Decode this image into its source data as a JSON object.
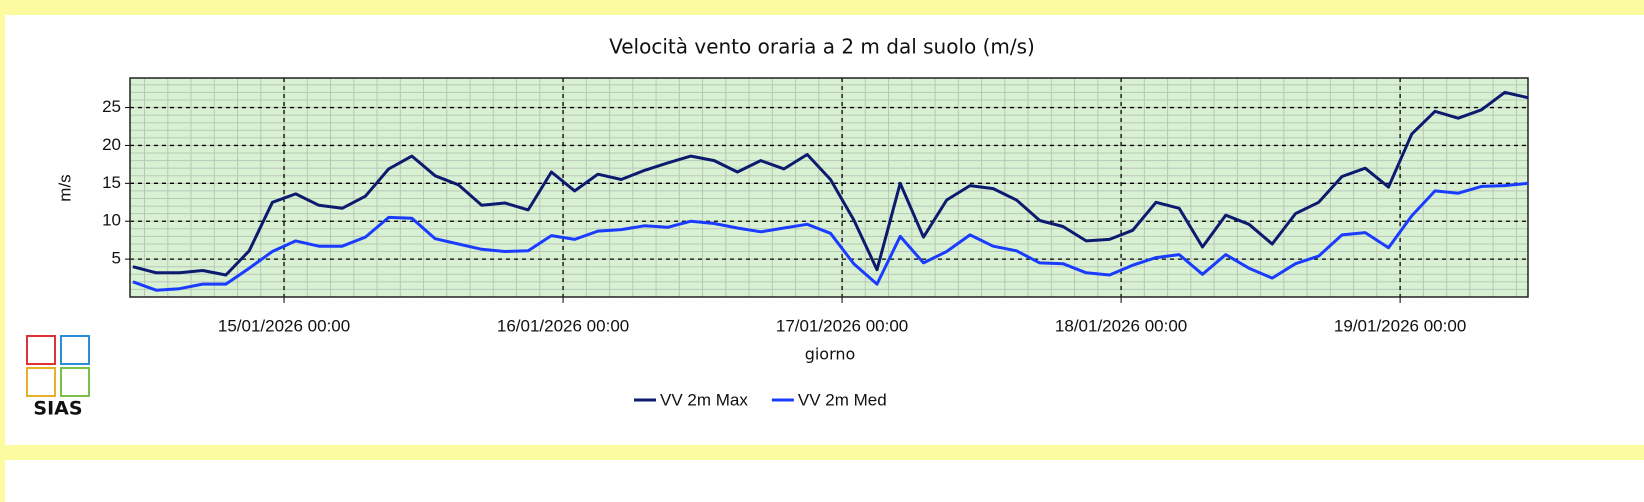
{
  "chart_data": {
    "type": "line",
    "title": "Velocità vento oraria a 2 m dal suolo (m/s)",
    "xlabel": "giorno",
    "ylabel": "m/s",
    "logo": "SIAS",
    "x": [
      "14/01/2026 11:00",
      "14/01/2026 13:00",
      "14/01/2026 15:00",
      "14/01/2026 17:00",
      "14/01/2026 19:00",
      "14/01/2026 21:00",
      "14/01/2026 23:00",
      "15/01/2026 01:00",
      "15/01/2026 03:00",
      "15/01/2026 05:00",
      "15/01/2026 07:00",
      "15/01/2026 09:00",
      "15/01/2026 11:00",
      "15/01/2026 13:00",
      "15/01/2026 15:00",
      "15/01/2026 17:00",
      "15/01/2026 19:00",
      "15/01/2026 21:00",
      "15/01/2026 23:00",
      "16/01/2026 01:00",
      "16/01/2026 03:00",
      "16/01/2026 05:00",
      "16/01/2026 07:00",
      "16/01/2026 09:00",
      "16/01/2026 11:00",
      "16/01/2026 13:00",
      "16/01/2026 15:00",
      "16/01/2026 17:00",
      "16/01/2026 19:00",
      "16/01/2026 21:00",
      "16/01/2026 23:00",
      "17/01/2026 01:00",
      "17/01/2026 03:00",
      "17/01/2026 05:00",
      "17/01/2026 07:00",
      "17/01/2026 09:00",
      "17/01/2026 11:00",
      "17/01/2026 13:00",
      "17/01/2026 15:00",
      "17/01/2026 17:00",
      "17/01/2026 19:00",
      "17/01/2026 21:00",
      "17/01/2026 23:00",
      "18/01/2026 01:00",
      "18/01/2026 03:00",
      "18/01/2026 05:00",
      "18/01/2026 07:00",
      "18/01/2026 09:00",
      "18/01/2026 11:00",
      "18/01/2026 13:00",
      "18/01/2026 15:00",
      "18/01/2026 17:00",
      "18/01/2026 19:00",
      "18/01/2026 21:00",
      "18/01/2026 23:00",
      "19/01/2026 01:00",
      "19/01/2026 03:00",
      "19/01/2026 05:00",
      "19/01/2026 07:00",
      "19/01/2026 09:00",
      "19/01/2026 11:00"
    ],
    "series": [
      {
        "name": "VV 2m Max",
        "color": "#0d1b6e",
        "values": [
          4.0,
          3.2,
          3.2,
          3.5,
          2.9,
          6.1,
          12.5,
          13.6,
          12.1,
          11.7,
          13.3,
          16.9,
          18.6,
          16.0,
          14.8,
          12.1,
          12.4,
          11.5,
          16.5,
          14.0,
          16.2,
          15.5,
          16.7,
          17.7,
          18.6,
          18.0,
          16.5,
          18.0,
          16.9,
          18.8,
          15.5,
          10.2,
          3.6,
          15.0,
          7.9,
          12.8,
          14.7,
          14.3,
          12.8,
          10.1,
          9.3,
          7.4,
          7.6,
          8.8,
          12.5,
          11.7,
          6.6,
          10.8,
          9.6,
          7.0,
          11.0,
          12.5,
          15.9,
          17.0,
          14.5,
          21.5,
          24.5,
          23.6,
          24.7,
          27.0,
          26.3
        ]
      },
      {
        "name": "VV 2m Med",
        "color": "#1a3cff",
        "values": [
          2.0,
          0.9,
          1.1,
          1.7,
          1.7,
          3.8,
          6.0,
          7.4,
          6.7,
          6.7,
          7.9,
          10.5,
          10.4,
          7.7,
          7.0,
          6.3,
          6.0,
          6.1,
          8.1,
          7.6,
          8.7,
          8.9,
          9.4,
          9.2,
          10.0,
          9.7,
          9.1,
          8.6,
          9.1,
          9.6,
          8.4,
          4.4,
          1.7,
          8.0,
          4.5,
          6.0,
          8.2,
          6.7,
          6.1,
          4.5,
          4.4,
          3.2,
          2.9,
          4.2,
          5.2,
          5.6,
          3.0,
          5.6,
          3.8,
          2.5,
          4.4,
          5.4,
          8.2,
          8.5,
          6.5,
          10.7,
          14.0,
          13.7,
          14.6,
          14.7,
          15.0
        ]
      }
    ],
    "xlim": [
      "14/01/2026 10:45",
      "19/01/2026 11:00"
    ],
    "xticks": [
      "15/01/2026 00:00",
      "16/01/2026 00:00",
      "17/01/2026 00:00",
      "18/01/2026 00:00",
      "19/01/2026 00:00"
    ],
    "ylim": [
      0,
      28.9
    ],
    "yticks": [
      5,
      10,
      15,
      20,
      25
    ],
    "grid": true,
    "plot_background": "#d9f1d3"
  }
}
